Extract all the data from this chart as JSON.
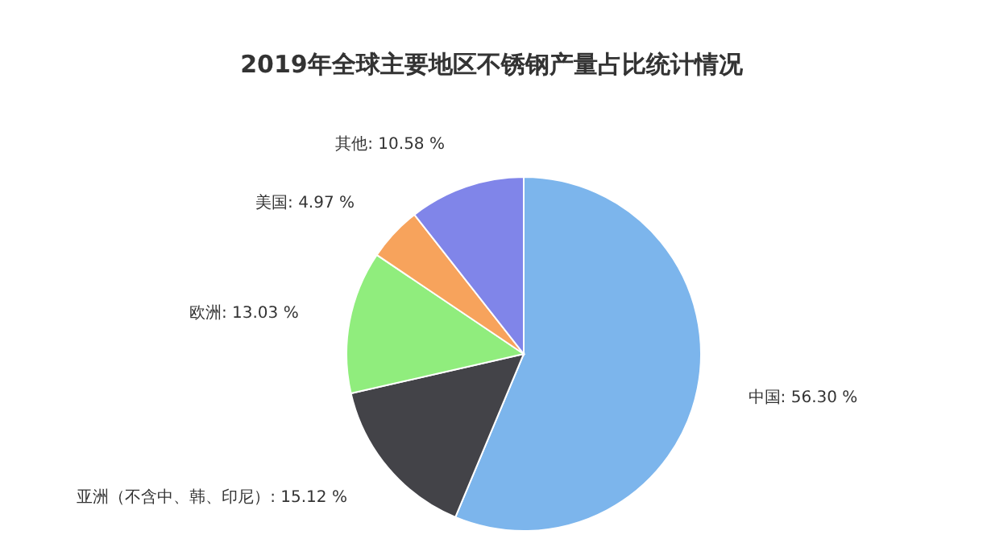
{
  "chart_data": {
    "type": "pie",
    "title": "2019年全球主要地区不锈钢产量占比统计情况",
    "categories": [
      "中国",
      "亚洲（不含中、韩、印尼）",
      "欧洲",
      "美国",
      "其他"
    ],
    "values": [
      56.3,
      15.12,
      13.03,
      4.97,
      10.58
    ],
    "value_labels": [
      "56.30 %",
      "15.12 %",
      "13.03 %",
      "4.97 %",
      "10.58 %"
    ],
    "colors": [
      "#7cb5ec",
      "#434348",
      "#90ed7d",
      "#f7a35c",
      "#8085e9"
    ],
    "legend": false
  }
}
